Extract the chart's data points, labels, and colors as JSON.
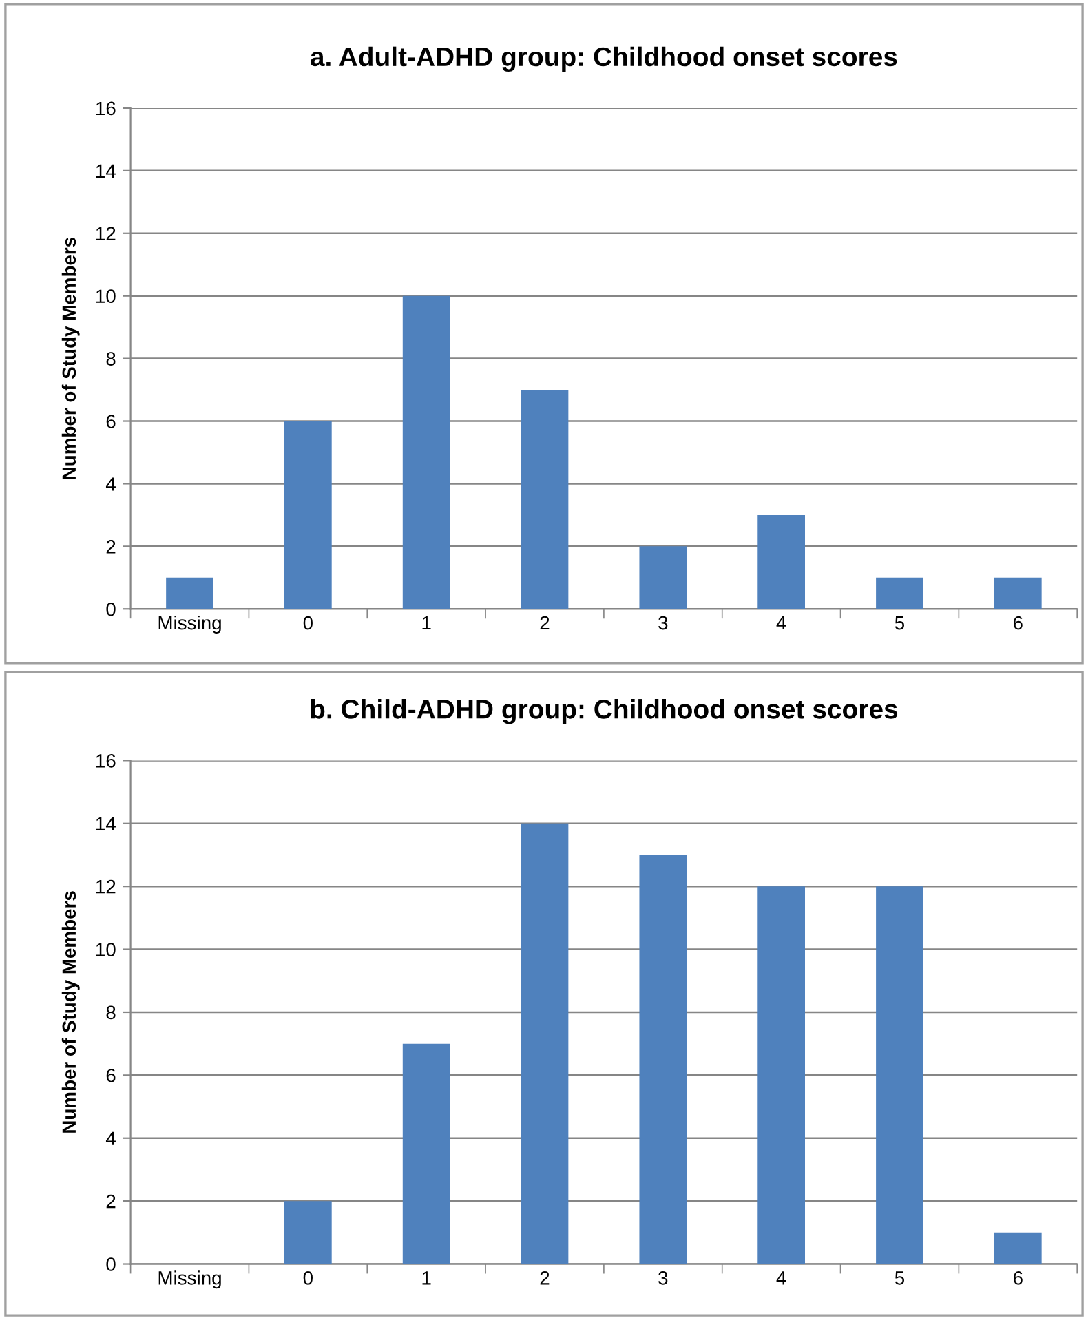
{
  "chart_data": [
    {
      "type": "bar",
      "title": "a. Adult-ADHD group: Childhood onset scores",
      "ylabel": "Number of Study Members",
      "categories": [
        "Missing",
        "0",
        "1",
        "2",
        "3",
        "4",
        "5",
        "6"
      ],
      "values": [
        1,
        6,
        10,
        7,
        2,
        3,
        1,
        1
      ],
      "color": "#4f81bd",
      "ylim": [
        0,
        16
      ],
      "yticks": [
        0,
        2,
        4,
        6,
        8,
        10,
        12,
        14,
        16
      ],
      "grid": "y"
    },
    {
      "type": "bar",
      "title": "b. Child-ADHD group: Childhood onset scores",
      "ylabel": "Number of Study Members",
      "categories": [
        "Missing",
        "0",
        "1",
        "2",
        "3",
        "4",
        "5",
        "6"
      ],
      "values": [
        0,
        2,
        7,
        14,
        13,
        12,
        12,
        1
      ],
      "color": "#4f81bd",
      "ylim": [
        0,
        16
      ],
      "yticks": [
        0,
        2,
        4,
        6,
        8,
        10,
        12,
        14,
        16
      ],
      "grid": "y"
    }
  ]
}
